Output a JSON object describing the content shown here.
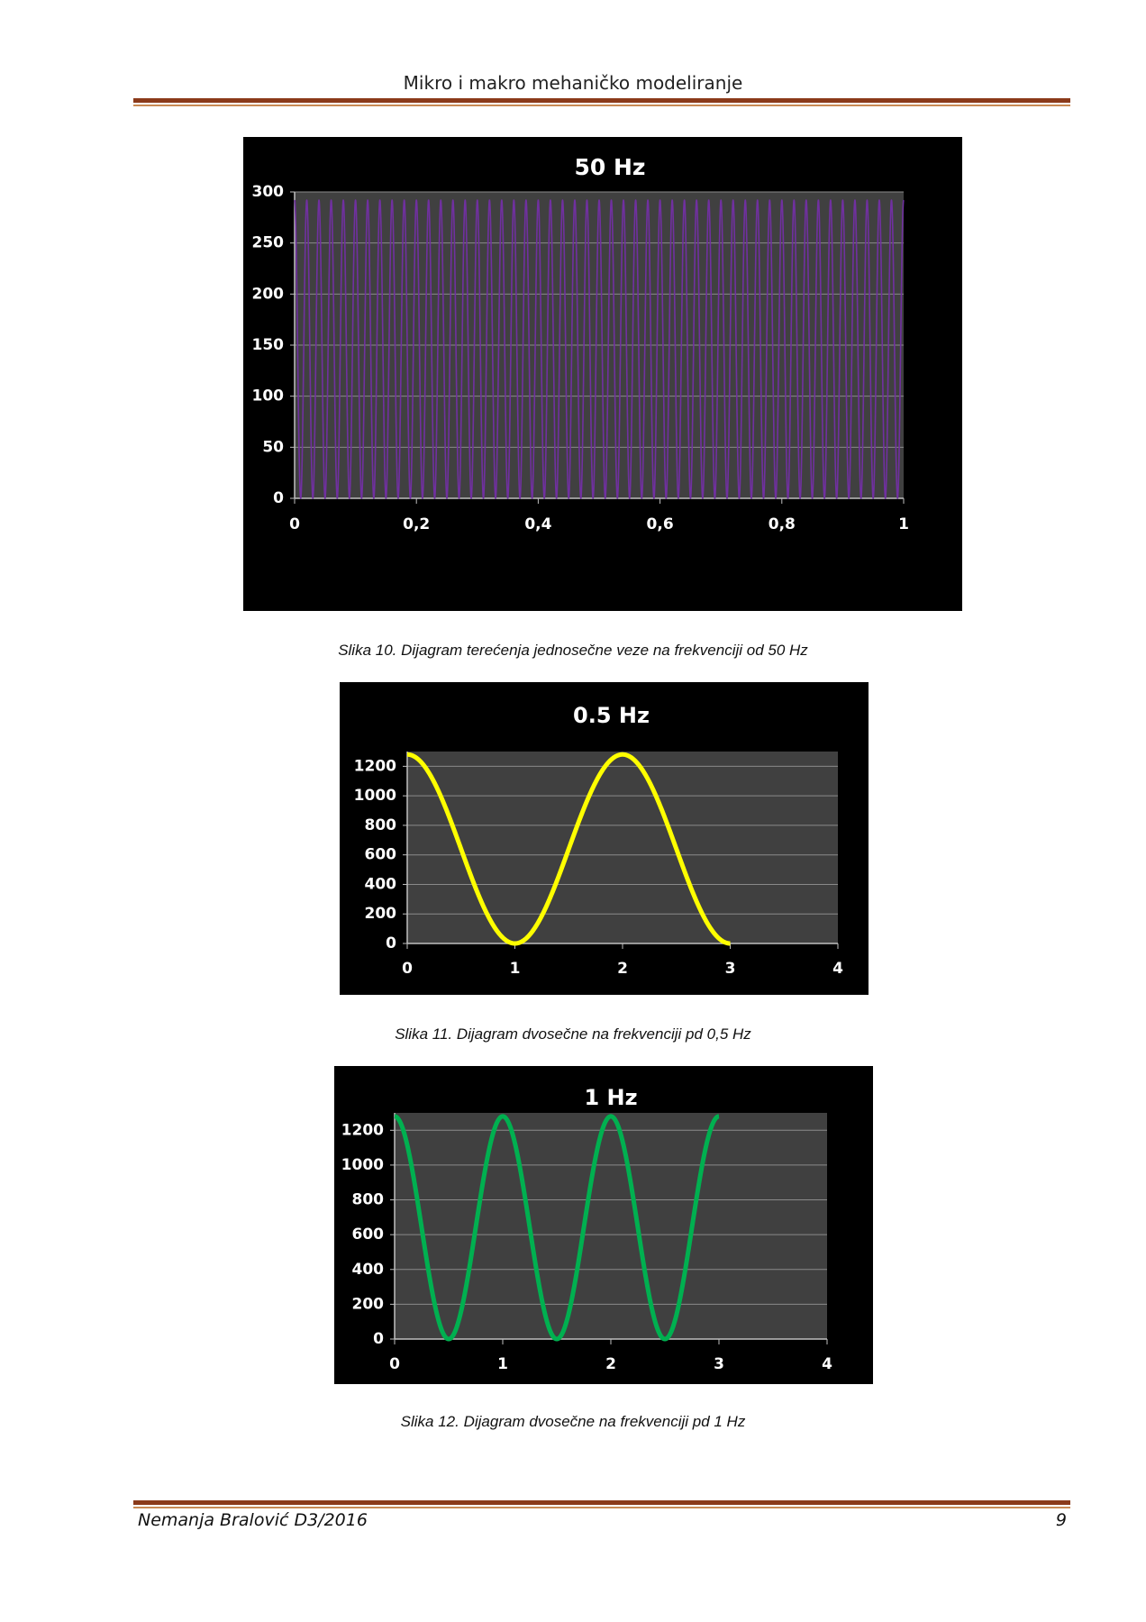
{
  "header": {
    "title": "Mikro i makro mehaničko modeliranje"
  },
  "captions": {
    "fig10": "Slika 10. Dijagram terećenja jednosečne veze na frekvenciji od 50 Hz",
    "fig11": "Slika 11. Dijagram dvosečne na frekvenciji pd 0,5 Hz",
    "fig12": "Slika 12. Dijagram dvosečne na frekvenciji pd 1 Hz"
  },
  "footer": {
    "author": "Nemanja Bralović D3/2016",
    "page": "9"
  },
  "colors": {
    "rule_dark": "#8b3a1a",
    "rule_light": "#c98a54",
    "plot_bg": "#404040",
    "chart_bg": "#000000"
  },
  "chart_data": [
    {
      "id": "chart-50hz",
      "type": "line",
      "title": "50 Hz",
      "xlim": [
        0,
        1
      ],
      "ylim": [
        0,
        300
      ],
      "xticks": [
        "0",
        "0,2",
        "0,4",
        "0,6",
        "0,8",
        "1"
      ],
      "xtick_values": [
        0,
        0.2,
        0.4,
        0.6,
        0.8,
        1
      ],
      "yticks": [
        "0",
        "50",
        "100",
        "150",
        "200",
        "250",
        "300"
      ],
      "ytick_values": [
        0,
        50,
        100,
        150,
        200,
        250,
        300
      ],
      "series": [
        {
          "function": "sinusoid",
          "frequency": 50,
          "min": 0,
          "max": 292,
          "start": "max",
          "x_range": [
            0,
            1
          ],
          "color": "#7030a0"
        }
      ],
      "grid": true,
      "legend": "none"
    },
    {
      "id": "chart-05hz",
      "type": "line",
      "title": "0.5 Hz",
      "xlim": [
        0,
        4
      ],
      "ylim": [
        0,
        1300
      ],
      "xticks": [
        "0",
        "1",
        "2",
        "3",
        "4"
      ],
      "xtick_values": [
        0,
        1,
        2,
        3,
        4
      ],
      "yticks": [
        "0",
        "200",
        "400",
        "600",
        "800",
        "1000",
        "1200"
      ],
      "ytick_values": [
        0,
        200,
        400,
        600,
        800,
        1000,
        1200
      ],
      "series": [
        {
          "function": "sinusoid",
          "frequency": 0.5,
          "min": 0,
          "max": 1280,
          "start": "max",
          "x_range": [
            0,
            3
          ],
          "color": "#ffff00"
        }
      ],
      "grid": true,
      "legend": "none"
    },
    {
      "id": "chart-1hz",
      "type": "line",
      "title": "1 Hz",
      "xlim": [
        0,
        4
      ],
      "ylim": [
        0,
        1300
      ],
      "xticks": [
        "0",
        "1",
        "2",
        "3",
        "4"
      ],
      "xtick_values": [
        0,
        1,
        2,
        3,
        4
      ],
      "yticks": [
        "0",
        "200",
        "400",
        "600",
        "800",
        "1000",
        "1200"
      ],
      "ytick_values": [
        0,
        200,
        400,
        600,
        800,
        1000,
        1200
      ],
      "series": [
        {
          "function": "sinusoid",
          "frequency": 1,
          "min": 0,
          "max": 1280,
          "start": "max",
          "x_range": [
            0,
            3
          ],
          "color": "#00b050"
        }
      ],
      "grid": true,
      "legend": "none"
    }
  ]
}
